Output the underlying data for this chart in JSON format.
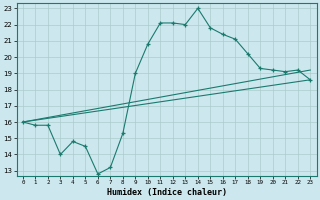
{
  "title": "",
  "xlabel": "Humidex (Indice chaleur)",
  "bg_color": "#cce8ee",
  "grid_color": "#aacccc",
  "line_color": "#1a7a6e",
  "xlim": [
    -0.5,
    23.5
  ],
  "ylim": [
    12.7,
    23.3
  ],
  "xticks": [
    0,
    1,
    2,
    3,
    4,
    5,
    6,
    7,
    8,
    9,
    10,
    11,
    12,
    13,
    14,
    15,
    16,
    17,
    18,
    19,
    20,
    21,
    22,
    23
  ],
  "yticks": [
    13,
    14,
    15,
    16,
    17,
    18,
    19,
    20,
    21,
    22,
    23
  ],
  "line1_x": [
    0,
    1,
    2,
    3,
    4,
    5,
    6,
    7,
    8,
    9,
    10,
    11,
    12,
    13,
    14,
    15,
    16,
    17,
    18,
    19,
    20,
    21,
    22,
    23
  ],
  "line1_y": [
    16,
    15.8,
    15.8,
    14.0,
    14.8,
    14.5,
    12.8,
    13.2,
    15.3,
    19.0,
    20.8,
    22.1,
    22.1,
    22.0,
    23.0,
    21.8,
    21.4,
    21.1,
    20.2,
    19.3,
    19.2,
    19.1,
    19.2,
    18.6
  ],
  "line2_x": [
    0,
    23
  ],
  "line2_y": [
    16.0,
    19.2
  ],
  "line3_x": [
    0,
    23
  ],
  "line3_y": [
    16.0,
    18.6
  ],
  "marker": "+"
}
